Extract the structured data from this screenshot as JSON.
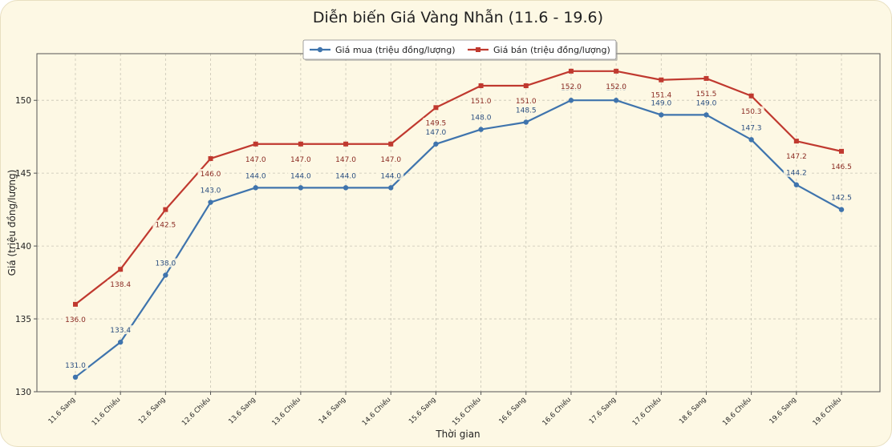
{
  "chart_data": {
    "type": "line",
    "title": "Diễn biến Giá Vàng Nhẫn (11.6 - 19.6)",
    "xlabel": "Thời gian",
    "ylabel": "Giá (triệu đồng/lượng)",
    "ylim": [
      130,
      153.2
    ],
    "yticks": [
      130,
      135,
      140,
      145,
      150
    ],
    "grid": true,
    "legend_position": "top-center",
    "categories": [
      "11.6 Sang",
      "11.6 Chiều",
      "12.6 Sang",
      "12.6 Chiều",
      "13.6 Sang",
      "13.6 Chiều",
      "14.6 Sang",
      "14.6 Chiều",
      "15.6 Sang",
      "15.6 Chiều",
      "16.6 Sang",
      "16.6 Chiều",
      "17.6 Sang",
      "17.6 Chiều",
      "18.6 Sang",
      "18.6 Chiều",
      "19.6 Sang",
      "19.6 Chiều"
    ],
    "series": [
      {
        "name": "Giá mua (triệu đồng/lượng)",
        "color": "#3f74ad",
        "marker": "circle",
        "values": [
          131.0,
          133.4,
          138.0,
          143.0,
          144.0,
          144.0,
          144.0,
          144.0,
          147.0,
          148.0,
          148.5,
          150.0,
          150.0,
          149.0,
          149.0,
          147.3,
          144.2,
          142.5
        ]
      },
      {
        "name": "Giá bán (triệu đồng/lượng)",
        "color": "#c0392f",
        "marker": "square",
        "values": [
          136.0,
          138.4,
          142.5,
          146.0,
          147.0,
          147.0,
          147.0,
          147.0,
          149.5,
          151.0,
          151.0,
          152.0,
          152.0,
          151.4,
          151.5,
          150.3,
          147.2,
          146.5
        ]
      }
    ]
  }
}
